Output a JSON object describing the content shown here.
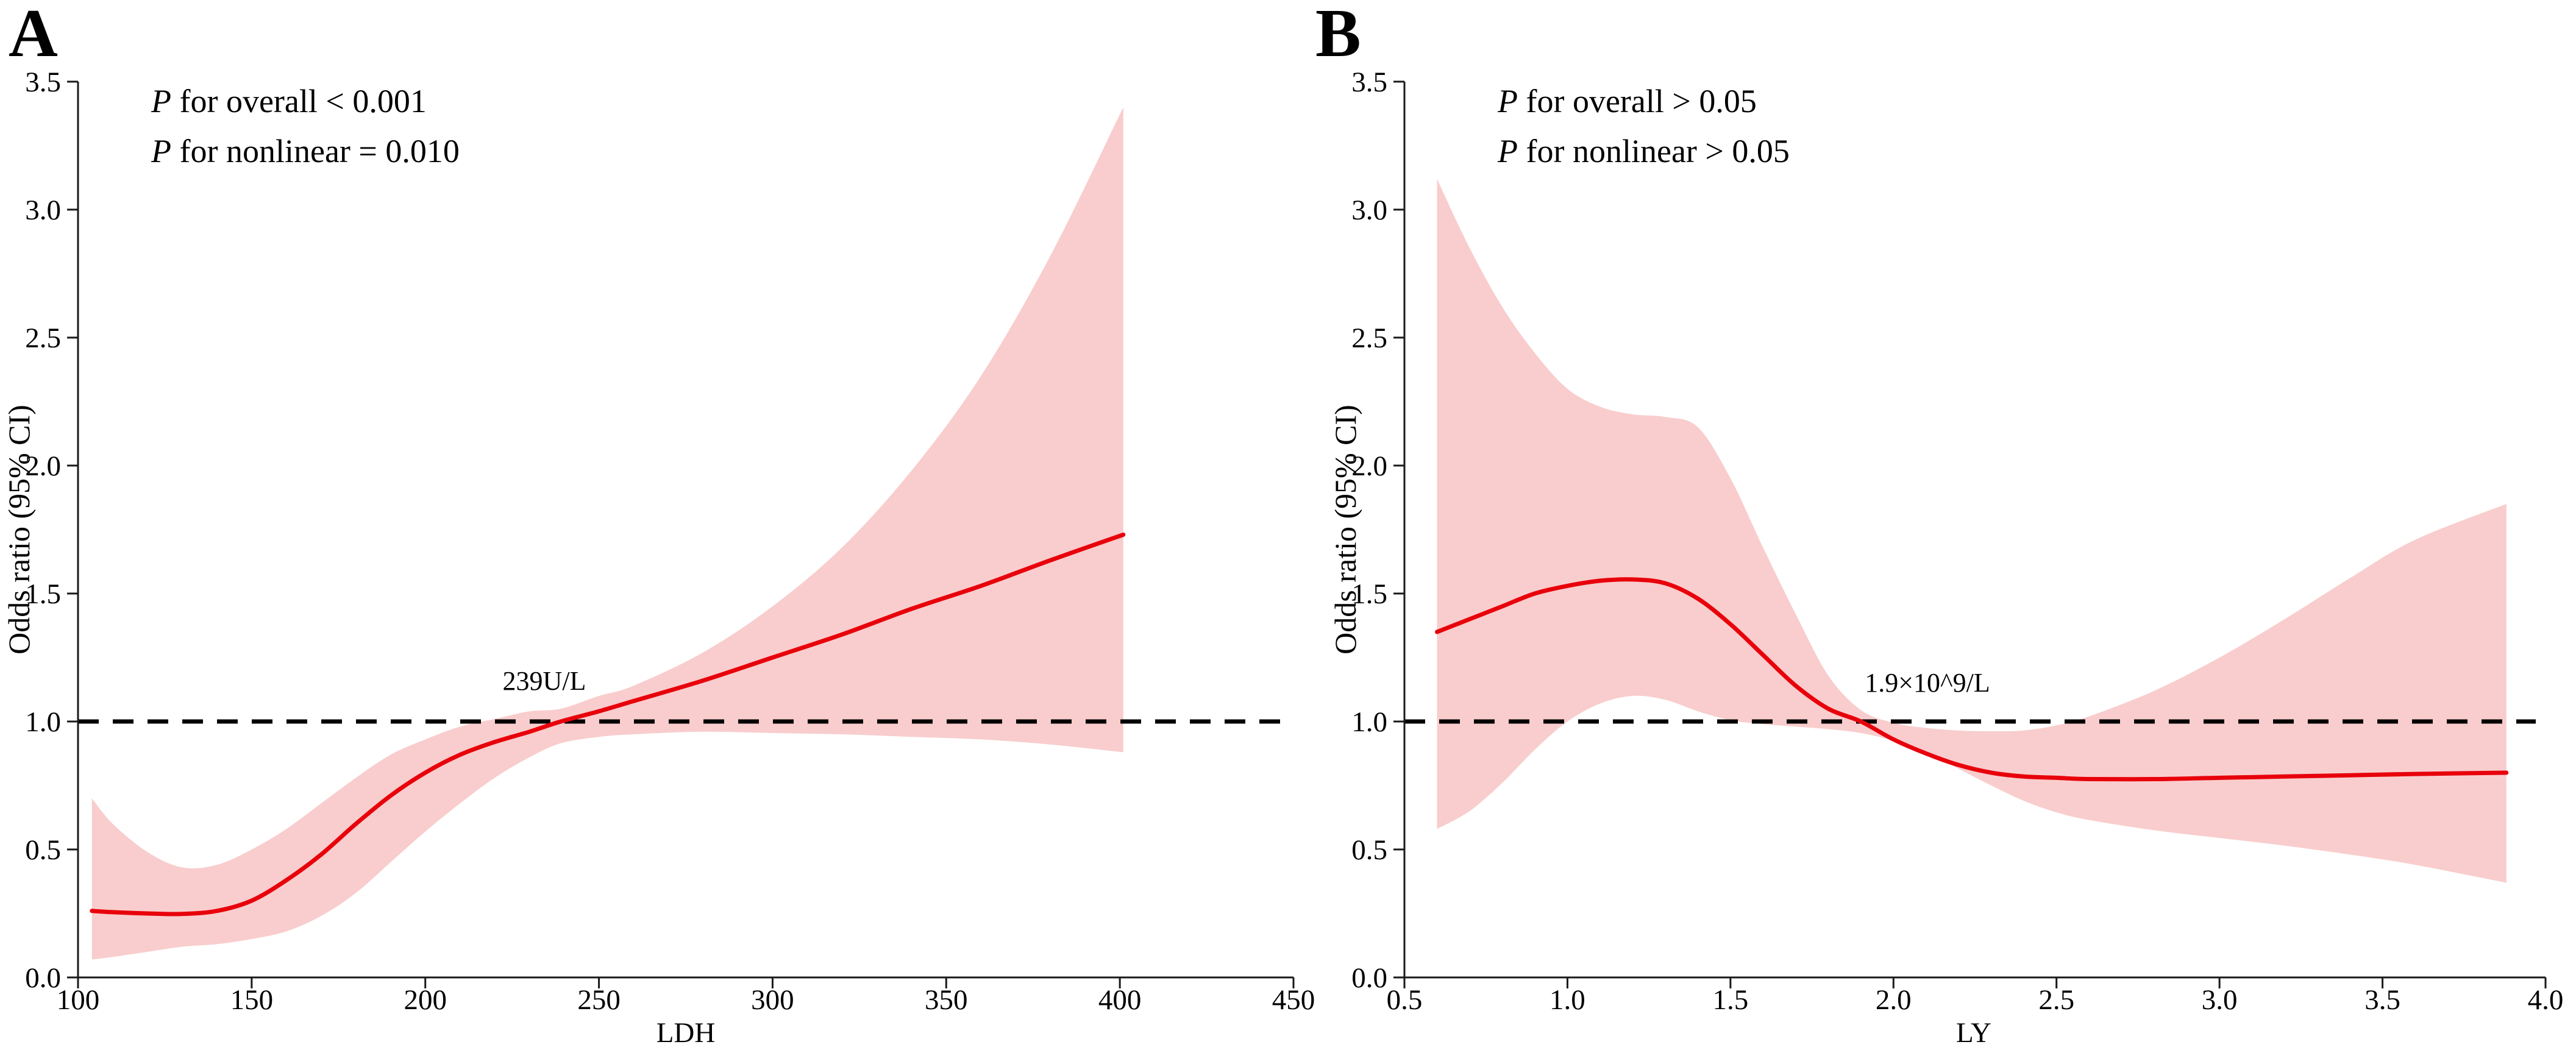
{
  "figure": {
    "background": "#ffffff",
    "panel_count": 2
  },
  "chart_data": [
    {
      "type": "line",
      "panel_label": "A",
      "stats_lines": [
        {
          "symbol": "P",
          "rest": " for overall < 0.001"
        },
        {
          "symbol": "P",
          "rest": " for nonlinear = 0.010"
        }
      ],
      "annotation": {
        "text": "239U/L",
        "x": 239,
        "y": 1.13
      },
      "xlabel": "LDH",
      "ylabel": "Odds ratio (95% CI)",
      "xlim": [
        100,
        450
      ],
      "ylim": [
        0.0,
        3.5
      ],
      "x_ticks": [
        "100",
        "150",
        "200",
        "250",
        "300",
        "350",
        "400",
        "450"
      ],
      "y_ticks": [
        "0.0",
        "0.5",
        "1.0",
        "1.5",
        "2.0",
        "2.5",
        "3.0",
        "3.5"
      ],
      "reference_line": {
        "y": 1.0,
        "style": "dashed"
      },
      "grid": false,
      "legend": "none",
      "colors": {
        "line": "#e8000b",
        "band": "#f9cdcd",
        "reference": "#000000"
      },
      "series": [
        {
          "name": "odds_ratio",
          "x": [
            104,
            110,
            120,
            130,
            140,
            150,
            160,
            170,
            180,
            190,
            200,
            210,
            220,
            230,
            239,
            250,
            260,
            280,
            300,
            320,
            340,
            360,
            380,
            401
          ],
          "y": [
            0.26,
            0.255,
            0.25,
            0.248,
            0.26,
            0.3,
            0.38,
            0.48,
            0.6,
            0.71,
            0.8,
            0.87,
            0.92,
            0.96,
            1.0,
            1.04,
            1.08,
            1.16,
            1.25,
            1.34,
            1.44,
            1.53,
            1.63,
            1.73
          ]
        },
        {
          "name": "ci_upper",
          "x": [
            104,
            110,
            120,
            130,
            140,
            150,
            160,
            170,
            180,
            190,
            200,
            210,
            220,
            230,
            239,
            250,
            260,
            280,
            300,
            320,
            340,
            360,
            380,
            401
          ],
          "y": [
            0.7,
            0.6,
            0.49,
            0.43,
            0.44,
            0.5,
            0.58,
            0.68,
            0.78,
            0.87,
            0.93,
            0.98,
            1.01,
            1.04,
            1.05,
            1.1,
            1.14,
            1.27,
            1.45,
            1.68,
            1.98,
            2.35,
            2.82,
            3.4
          ]
        },
        {
          "name": "ci_lower",
          "x": [
            104,
            110,
            120,
            130,
            140,
            150,
            160,
            170,
            180,
            190,
            200,
            210,
            220,
            230,
            239,
            250,
            260,
            280,
            300,
            320,
            340,
            360,
            380,
            401
          ],
          "y": [
            0.07,
            0.08,
            0.1,
            0.12,
            0.13,
            0.15,
            0.18,
            0.24,
            0.33,
            0.45,
            0.57,
            0.68,
            0.78,
            0.86,
            0.915,
            0.94,
            0.95,
            0.96,
            0.955,
            0.95,
            0.94,
            0.93,
            0.91,
            0.88
          ]
        }
      ]
    },
    {
      "type": "line",
      "panel_label": "B",
      "stats_lines": [
        {
          "symbol": "P",
          "rest": " for overall > 0.05"
        },
        {
          "symbol": "P",
          "rest": " for nonlinear > 0.05"
        }
      ],
      "annotation": {
        "text": "1.9×10^9/L",
        "x": 1.9,
        "y": 1.13
      },
      "xlabel": "LY",
      "ylabel": "Odds ratio (95% CI)",
      "xlim": [
        0.5,
        4.0
      ],
      "ylim": [
        0.0,
        3.5
      ],
      "x_ticks": [
        "0.5",
        "1.0",
        "1.5",
        "2.0",
        "2.5",
        "3.0",
        "3.5",
        "4.0"
      ],
      "y_ticks": [
        "0.0",
        "0.5",
        "1.0",
        "1.5",
        "2.0",
        "2.5",
        "3.0",
        "3.5"
      ],
      "reference_line": {
        "y": 1.0,
        "style": "dashed"
      },
      "grid": false,
      "legend": "none",
      "colors": {
        "line": "#e8000b",
        "band": "#f9cdcd",
        "reference": "#000000"
      },
      "series": [
        {
          "name": "odds_ratio",
          "x": [
            0.6,
            0.7,
            0.8,
            0.9,
            1.0,
            1.1,
            1.2,
            1.3,
            1.4,
            1.5,
            1.6,
            1.7,
            1.8,
            1.9,
            2.0,
            2.1,
            2.2,
            2.3,
            2.4,
            2.5,
            2.6,
            2.8,
            3.0,
            3.2,
            3.4,
            3.6,
            3.88
          ],
          "y": [
            1.35,
            1.4,
            1.45,
            1.5,
            1.53,
            1.55,
            1.555,
            1.54,
            1.48,
            1.38,
            1.26,
            1.14,
            1.05,
            1.0,
            0.93,
            0.875,
            0.83,
            0.8,
            0.785,
            0.78,
            0.775,
            0.775,
            0.78,
            0.785,
            0.79,
            0.795,
            0.8
          ]
        },
        {
          "name": "ci_upper",
          "x": [
            0.6,
            0.7,
            0.8,
            0.9,
            1.0,
            1.1,
            1.2,
            1.3,
            1.4,
            1.5,
            1.6,
            1.7,
            1.8,
            1.9,
            2.0,
            2.1,
            2.2,
            2.3,
            2.4,
            2.5,
            2.6,
            2.8,
            3.0,
            3.2,
            3.4,
            3.6,
            3.88
          ],
          "y": [
            3.12,
            2.85,
            2.62,
            2.44,
            2.3,
            2.23,
            2.2,
            2.19,
            2.15,
            1.95,
            1.68,
            1.42,
            1.18,
            1.045,
            0.995,
            0.975,
            0.965,
            0.962,
            0.965,
            0.985,
            1.02,
            1.12,
            1.25,
            1.4,
            1.56,
            1.71,
            1.85
          ]
        },
        {
          "name": "ci_lower",
          "x": [
            0.6,
            0.7,
            0.8,
            0.9,
            1.0,
            1.1,
            1.2,
            1.3,
            1.4,
            1.5,
            1.6,
            1.7,
            1.8,
            1.9,
            2.0,
            2.1,
            2.2,
            2.3,
            2.4,
            2.5,
            2.6,
            2.8,
            3.0,
            3.2,
            3.4,
            3.6,
            3.88
          ],
          "y": [
            0.58,
            0.65,
            0.76,
            0.89,
            1.0,
            1.07,
            1.1,
            1.085,
            1.04,
            1.005,
            0.99,
            0.98,
            0.97,
            0.955,
            0.925,
            0.88,
            0.815,
            0.75,
            0.69,
            0.645,
            0.615,
            0.575,
            0.545,
            0.515,
            0.48,
            0.44,
            0.37
          ]
        }
      ]
    }
  ]
}
